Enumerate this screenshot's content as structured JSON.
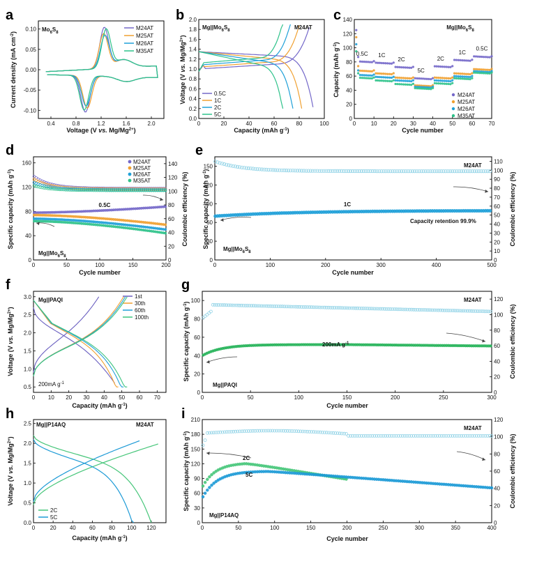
{
  "colors": {
    "M24AT": "#7468c9",
    "M25AT": "#f0a030",
    "M26AT": "#1fa0d8",
    "M35AT": "#2ec28a",
    "ce": "#8fd2e6",
    "c1st": "#6a5fc0",
    "c30th": "#f0a030",
    "c60th": "#1fa0d8",
    "c100th": "#3cc47f",
    "c2C": "#47c67a",
    "c5C": "#1c9ad6",
    "gdark": "#27b45a"
  },
  "chart_data": [
    {
      "panel": "a",
      "type": "line",
      "sample_label": "Mo6S8",
      "xlabel": "Voltage (V vs. Mg/Mg2+)",
      "ylabel": "Current density (mA cm-2)",
      "xlim": [
        0.2,
        2.2
      ],
      "ylim": [
        -0.12,
        0.12
      ],
      "xticks": [
        "0.4",
        "0.8",
        "1.2",
        "1.6",
        "2.0"
      ],
      "xtick_values": [
        0.4,
        0.8,
        1.2,
        1.6,
        2.0
      ],
      "yticks": [
        "-0.10",
        "-0.05",
        "0.00",
        "0.05",
        "0.10"
      ],
      "ytick_values": [
        -0.1,
        -0.05,
        0,
        0.05,
        0.1
      ],
      "legend": "top-right",
      "series": [
        {
          "name": "M24AT",
          "anodic_peak": [
            1.25,
            0.1
          ],
          "cathodic_peak": [
            0.95,
            -0.09
          ]
        },
        {
          "name": "M25AT",
          "anodic_peak": [
            1.24,
            0.085
          ],
          "cathodic_peak": [
            0.98,
            -0.08
          ]
        },
        {
          "name": "M26AT",
          "anodic_peak": [
            1.26,
            0.08
          ],
          "cathodic_peak": [
            0.96,
            -0.075
          ]
        },
        {
          "name": "M35AT",
          "anodic_peak": [
            1.28,
            0.095
          ],
          "cathodic_peak": [
            0.93,
            -0.085
          ]
        }
      ]
    },
    {
      "panel": "b",
      "type": "line",
      "title": "Mg||Mo6S8",
      "sample_label": "M24AT",
      "xlabel": "Capacity (mAh g-1)",
      "ylabel": "Voltage (V vs. Mg/Mg2+)",
      "xlim": [
        0,
        100
      ],
      "ylim": [
        0,
        2.0
      ],
      "xticks": [
        "0",
        "20",
        "40",
        "60",
        "80",
        "100"
      ],
      "xtick_values": [
        0,
        20,
        40,
        60,
        80,
        100
      ],
      "yticks": [
        "0.0",
        "0.2",
        "0.4",
        "0.6",
        "0.8",
        "1.0",
        "1.2",
        "1.4",
        "1.6",
        "1.8",
        "2.0"
      ],
      "ytick_values": [
        0,
        0.2,
        0.4,
        0.6,
        0.8,
        1.0,
        1.2,
        1.4,
        1.6,
        1.8,
        2.0
      ],
      "legend": "bottom-left",
      "series": [
        {
          "name": "0.5C",
          "discharge_capacity": 91,
          "charge_capacity": 88
        },
        {
          "name": "1C",
          "discharge_capacity": 82,
          "charge_capacity": 80
        },
        {
          "name": "2C",
          "discharge_capacity": 75,
          "charge_capacity": 73
        },
        {
          "name": "5C",
          "discharge_capacity": 67,
          "charge_capacity": 67
        }
      ]
    },
    {
      "panel": "c",
      "type": "scatter",
      "title": "Mg||Mo6S8",
      "xlabel": "Cycle number",
      "ylabel": "Capacity (mAh g-1)",
      "xlim": [
        0,
        70
      ],
      "ylim": [
        0,
        140
      ],
      "xticks": [
        "0",
        "10",
        "20",
        "30",
        "40",
        "50",
        "60",
        "70"
      ],
      "xtick_values": [
        0,
        10,
        20,
        30,
        40,
        50,
        60,
        70
      ],
      "yticks": [
        "0",
        "20",
        "40",
        "60",
        "80",
        "100",
        "120",
        "140"
      ],
      "ytick_values": [
        0,
        20,
        40,
        60,
        80,
        100,
        120,
        140
      ],
      "rate_labels": [
        "0.5C",
        "1C",
        "2C",
        "5C",
        "2C",
        "1C",
        "0.5C"
      ],
      "rate_label_x": [
        4,
        14,
        24,
        34,
        44,
        55,
        65
      ],
      "legend": "bottom-right",
      "series": [
        {
          "name": "M24AT",
          "levels": [
            81,
            79,
            73,
            57,
            74,
            83,
            88
          ]
        },
        {
          "name": "M25AT",
          "levels": [
            68,
            64,
            58,
            47,
            58,
            64,
            70
          ]
        },
        {
          "name": "M26AT",
          "levels": [
            62,
            59,
            54,
            45,
            54,
            60,
            67
          ]
        },
        {
          "name": "M35AT",
          "levels": [
            58,
            54,
            49,
            43,
            50,
            57,
            65
          ]
        }
      ]
    },
    {
      "panel": "d",
      "type": "scatter",
      "sample_label": "Mg||Mo6S8",
      "rate_label": "0.5C",
      "xlabel": "Cycle number",
      "ylabel": "Specific capacity (mAh g-1)",
      "y2label": "Coulombic efficiency (%)",
      "xlim": [
        0,
        200
      ],
      "ylim": [
        0,
        170
      ],
      "y2lim": [
        0,
        150
      ],
      "xticks": [
        "0",
        "50",
        "100",
        "150",
        "200"
      ],
      "xtick_values": [
        0,
        50,
        100,
        150,
        200
      ],
      "yticks": [
        "0",
        "40",
        "80",
        "120",
        "160"
      ],
      "ytick_values": [
        0,
        40,
        80,
        120,
        160
      ],
      "y2ticks": [
        "0",
        "20",
        "40",
        "60",
        "80",
        "100",
        "120",
        "140"
      ],
      "y2tick_values": [
        0,
        20,
        40,
        60,
        80,
        100,
        120,
        140
      ],
      "legend": "top-right",
      "series": [
        {
          "name": "M24AT",
          "capacity_start": 78,
          "capacity_end": 88,
          "ce_start": 122,
          "ce_end": 104
        },
        {
          "name": "M25AT",
          "capacity_start": 74,
          "capacity_end": 58,
          "ce_start": 118,
          "ce_end": 103
        },
        {
          "name": "M26AT",
          "capacity_start": 68,
          "capacity_end": 50,
          "ce_start": 113,
          "ce_end": 102
        },
        {
          "name": "M35AT",
          "capacity_start": 64,
          "capacity_end": 44,
          "ce_start": 108,
          "ce_end": 101
        }
      ]
    },
    {
      "panel": "e",
      "type": "scatter",
      "sample_label": "M24AT",
      "rate_label": "1C",
      "inset_label": "Mg||Mo6S8",
      "annotation": "Capacity retention 99.9%",
      "xlabel": "Cycle number",
      "ylabel": "Specific capacity (mAh g-1)",
      "y2label": "Coulombic efficiency (%)",
      "xlim": [
        0,
        500
      ],
      "ylim": [
        0,
        165
      ],
      "y2lim": [
        0,
        115
      ],
      "xticks": [
        "0",
        "100",
        "200",
        "300",
        "400",
        "500"
      ],
      "xtick_values": [
        0,
        100,
        200,
        300,
        400,
        500
      ],
      "yticks": [
        "0",
        "30",
        "60",
        "90",
        "120",
        "150"
      ],
      "ytick_values": [
        0,
        30,
        60,
        90,
        120,
        150
      ],
      "y2ticks": [
        "0",
        "10",
        "20",
        "30",
        "40",
        "50",
        "60",
        "70",
        "80",
        "90",
        "100",
        "110"
      ],
      "y2tick_values": [
        0,
        10,
        20,
        30,
        40,
        50,
        60,
        70,
        80,
        90,
        100,
        110
      ],
      "series": [
        {
          "name": "capacity",
          "start": 70,
          "end": 79
        },
        {
          "name": "coulombic efficiency",
          "start": 110,
          "end": 99
        }
      ]
    },
    {
      "panel": "f",
      "type": "line",
      "title": "Mg||PAQI",
      "current_label": "200mA g-1",
      "xlabel": "Capacity (mAh g-1)",
      "ylabel": "Voltage (V vs. Mg/Mg2+)",
      "xlim": [
        0,
        75
      ],
      "ylim": [
        0.35,
        3.15
      ],
      "xticks": [
        "0",
        "10",
        "20",
        "30",
        "40",
        "50",
        "60",
        "70"
      ],
      "xtick_values": [
        0,
        10,
        20,
        30,
        40,
        50,
        60,
        70
      ],
      "yticks": [
        "0.5",
        "1.0",
        "1.5",
        "2.0",
        "2.5",
        "3.0"
      ],
      "ytick_values": [
        0.5,
        1.0,
        1.5,
        2.0,
        2.5,
        3.0
      ],
      "legend": "top-right",
      "series": [
        {
          "name": "1st",
          "discharge_capacity": 46,
          "charge_capacity": 37
        },
        {
          "name": "30th",
          "discharge_capacity": 48,
          "charge_capacity": 51
        },
        {
          "name": "60th",
          "discharge_capacity": 51,
          "charge_capacity": 52
        },
        {
          "name": "100th",
          "discharge_capacity": 53,
          "charge_capacity": 53
        }
      ]
    },
    {
      "panel": "g",
      "type": "scatter",
      "sample_label": "M24AT",
      "rate_label": "200mA g-1",
      "inset_label": "Mg||PAQI",
      "xlabel": "Cycle number",
      "ylabel": "Specific capacity (mAh g-1)",
      "y2label": "Coulombic efficiency (%)",
      "xlim": [
        0,
        300
      ],
      "ylim": [
        0,
        110
      ],
      "y2lim": [
        0,
        130
      ],
      "xticks": [
        "0",
        "50",
        "100",
        "150",
        "200",
        "250",
        "300"
      ],
      "xtick_values": [
        0,
        50,
        100,
        150,
        200,
        250,
        300
      ],
      "yticks": [
        "0",
        "20",
        "40",
        "60",
        "80",
        "100"
      ],
      "ytick_values": [
        0,
        20,
        40,
        60,
        80,
        100
      ],
      "y2ticks": [
        "0",
        "20",
        "40",
        "60",
        "80",
        "100",
        "120"
      ],
      "y2tick_values": [
        0,
        20,
        40,
        60,
        80,
        100,
        120
      ],
      "series": [
        {
          "name": "capacity",
          "start": 40,
          "end": 50
        },
        {
          "name": "coulombic efficiency",
          "start": 105,
          "end": 104
        }
      ]
    },
    {
      "panel": "h",
      "type": "line",
      "title": "Mg||P14AQ",
      "sample_label": "M24AT",
      "xlabel": "Capacity (mAh g-1)",
      "ylabel": "Voltage (V vs. Mg/Mg2+)",
      "xlim": [
        0,
        135
      ],
      "ylim": [
        0,
        2.6
      ],
      "xticks": [
        "0",
        "20",
        "40",
        "60",
        "80",
        "100",
        "120"
      ],
      "xtick_values": [
        0,
        20,
        40,
        60,
        80,
        100,
        120
      ],
      "yticks": [
        "0.0",
        "0.5",
        "1.0",
        "1.5",
        "2.0",
        "2.5"
      ],
      "ytick_values": [
        0,
        0.5,
        1.0,
        1.5,
        2.0,
        2.5
      ],
      "legend": "bottom-left",
      "series": [
        {
          "name": "2C",
          "discharge_capacity": 120,
          "charge_capacity": 127
        },
        {
          "name": "5C",
          "discharge_capacity": 102,
          "charge_capacity": 108
        }
      ]
    },
    {
      "panel": "i",
      "type": "scatter",
      "sample_label": "M24AT",
      "inset_label": "Mg||P14AQ",
      "xlabel": "Cycle number",
      "ylabel": "Specific capacity (mAh g-1)",
      "y2label": "Coulombic efficiency (%)",
      "xlim": [
        0,
        400
      ],
      "ylim": [
        0,
        210
      ],
      "y2lim": [
        0,
        120
      ],
      "xticks": [
        "0",
        "50",
        "100",
        "150",
        "200",
        "250",
        "300",
        "350",
        "400"
      ],
      "xtick_values": [
        0,
        50,
        100,
        150,
        200,
        250,
        300,
        350,
        400
      ],
      "yticks": [
        "0",
        "30",
        "60",
        "90",
        "120",
        "150",
        "180",
        "210"
      ],
      "ytick_values": [
        0,
        30,
        60,
        90,
        120,
        150,
        180,
        210
      ],
      "y2ticks": [
        "0",
        "20",
        "40",
        "60",
        "80",
        "100",
        "120"
      ],
      "y2tick_values": [
        0,
        20,
        40,
        60,
        80,
        100,
        120
      ],
      "series": [
        {
          "name": "2C",
          "capacity_peak": 122,
          "capacity_end": 87
        },
        {
          "name": "5C",
          "capacity_peak": 105,
          "capacity_end": 70
        },
        {
          "name": "coulombic efficiency",
          "start": 98,
          "end": 100
        }
      ]
    }
  ]
}
